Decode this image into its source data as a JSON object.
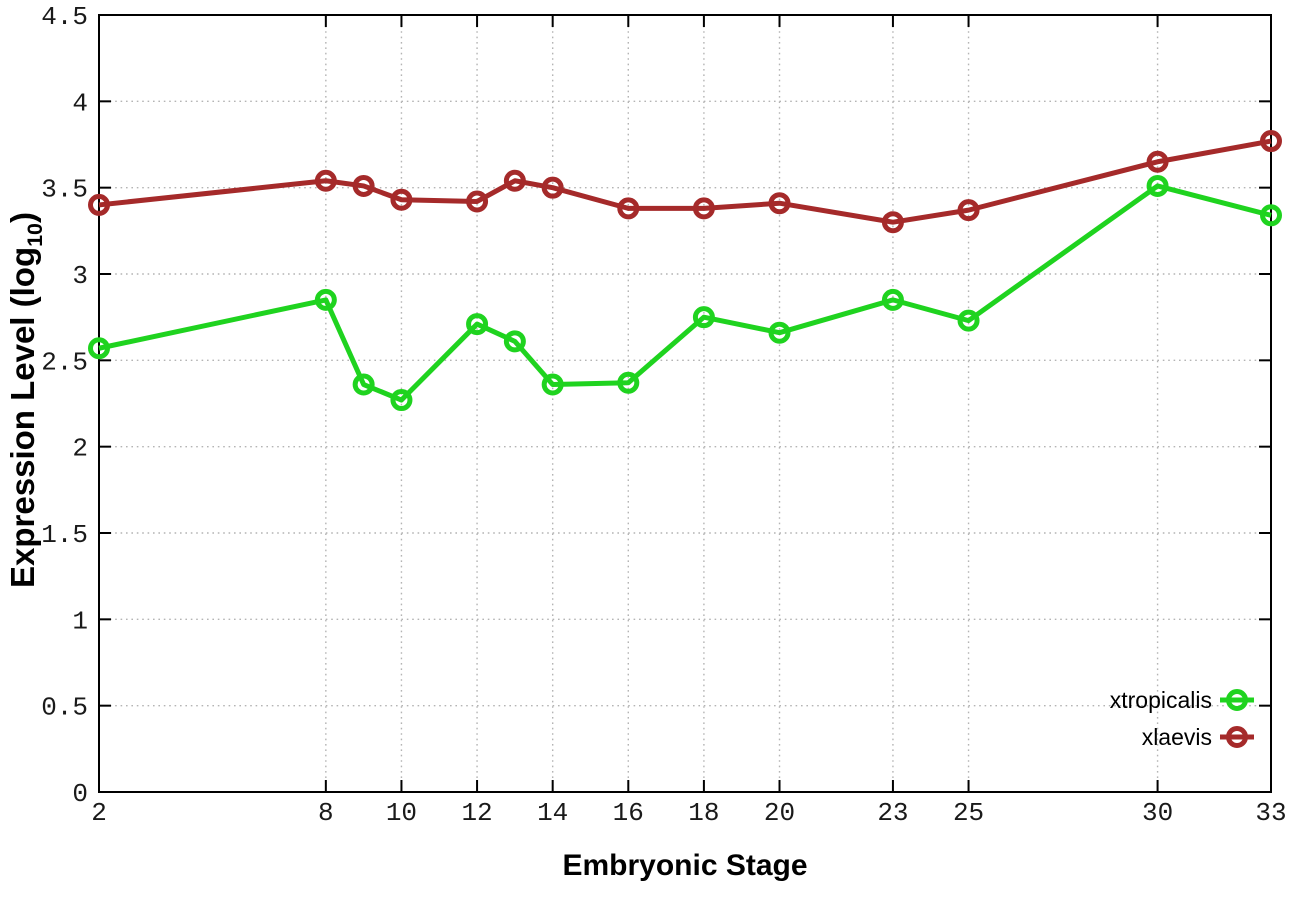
{
  "axes": {
    "x": {
      "title": "Embryonic Stage"
    },
    "y": {
      "title_prefix": "Expression Level (log",
      "title_sub": "10",
      "title_suffix": ")"
    }
  },
  "legend": {
    "position": "bottom-right",
    "entries": [
      {
        "label": "xtropicalis",
        "color": "#1fd31f"
      },
      {
        "label": "xlaevis",
        "color": "#a52a2a"
      }
    ]
  },
  "chart_data": {
    "type": "line",
    "title": "",
    "xlabel": "Embryonic Stage",
    "ylabel": "Expression Level (log10)",
    "x": [
      2,
      8,
      9,
      10,
      12,
      13,
      14,
      16,
      18,
      20,
      23,
      25,
      30,
      33
    ],
    "series": [
      {
        "name": "xtropicalis",
        "color": "#1fd31f",
        "values": [
          2.57,
          2.85,
          2.36,
          2.27,
          2.71,
          2.61,
          2.36,
          2.37,
          2.75,
          2.66,
          2.85,
          2.73,
          3.51,
          3.34
        ]
      },
      {
        "name": "xlaevis",
        "color": "#a52a2a",
        "values": [
          3.4,
          3.54,
          3.51,
          3.43,
          3.42,
          3.54,
          3.5,
          3.38,
          3.38,
          3.41,
          3.3,
          3.37,
          3.65,
          3.77
        ]
      }
    ],
    "xticks": [
      2,
      8,
      10,
      12,
      14,
      16,
      18,
      20,
      23,
      25,
      30,
      33
    ],
    "yticks": [
      0,
      0.5,
      1,
      1.5,
      2,
      2.5,
      3,
      3.5,
      4,
      4.5
    ],
    "xlim": [
      2,
      33
    ],
    "ylim": [
      0,
      4.5
    ],
    "grid": true,
    "marker": "open-circle",
    "legend_position": "bottom-right"
  }
}
